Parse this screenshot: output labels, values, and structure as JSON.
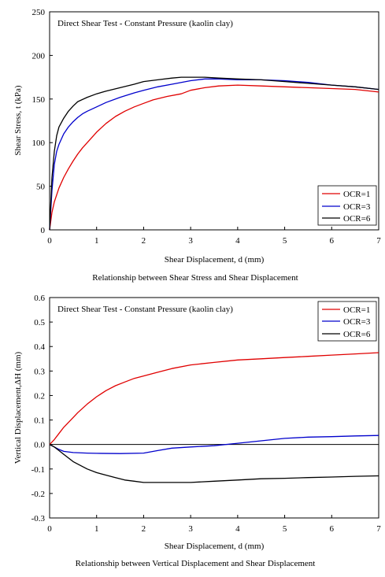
{
  "colors": {
    "ocr1": "#e00000",
    "ocr3": "#0000cc",
    "ocr6": "#000000"
  },
  "chart_data": [
    {
      "type": "line",
      "title": "Direct Shear Test - Constant Pressure  (kaolin clay)",
      "xlabel": "Shear Displacement, d (mm)",
      "ylabel": "Shear Stress, t (kPa)",
      "caption": "Relationship between Shear Stress and Shear Displacement",
      "xlim": [
        0,
        7
      ],
      "ylim": [
        0,
        250
      ],
      "xticks": [
        0,
        1,
        2,
        3,
        4,
        5,
        6,
        7
      ],
      "yticks": [
        0,
        50,
        100,
        150,
        200,
        250
      ],
      "ytick_decimals": 0,
      "zero_line": false,
      "legend_position": "bottom-right",
      "series": [
        {
          "name": "OCR=1",
          "color": "#e00000",
          "x": [
            0,
            0.05,
            0.1,
            0.2,
            0.3,
            0.4,
            0.5,
            0.6,
            0.7,
            0.8,
            1.0,
            1.2,
            1.4,
            1.6,
            1.8,
            2.0,
            2.2,
            2.5,
            2.8,
            3.0,
            3.3,
            3.6,
            4.0,
            4.5,
            5.0,
            5.5,
            6.0,
            6.5,
            7.0
          ],
          "y": [
            0,
            20,
            32,
            48,
            60,
            70,
            79,
            87,
            94,
            100,
            112,
            122,
            130,
            136,
            141,
            145,
            149,
            153,
            156,
            160,
            163,
            165,
            166,
            165,
            164,
            163,
            162,
            161,
            158
          ]
        },
        {
          "name": "OCR=3",
          "color": "#0000cc",
          "x": [
            0,
            0.05,
            0.1,
            0.15,
            0.2,
            0.3,
            0.4,
            0.5,
            0.6,
            0.7,
            0.8,
            1.0,
            1.2,
            1.5,
            1.8,
            2.0,
            2.3,
            2.6,
            3.0,
            3.3,
            3.6,
            4.0,
            4.5,
            5.0,
            5.5,
            6.0,
            6.5,
            7.0
          ],
          "y": [
            0,
            45,
            75,
            90,
            98,
            110,
            118,
            124,
            129,
            133,
            136,
            141,
            146,
            152,
            157,
            160,
            164,
            167,
            171,
            173,
            173,
            172,
            172,
            171,
            169,
            166,
            164,
            161
          ]
        },
        {
          "name": "OCR=6",
          "color": "#000000",
          "x": [
            0,
            0.05,
            0.1,
            0.15,
            0.2,
            0.3,
            0.4,
            0.5,
            0.6,
            0.8,
            1.0,
            1.2,
            1.5,
            1.8,
            2.0,
            2.3,
            2.6,
            2.8,
            3.0,
            3.3,
            3.6,
            4.0,
            4.5,
            5.0,
            5.5,
            6.0,
            6.5,
            7.0
          ],
          "y": [
            0,
            60,
            90,
            108,
            118,
            128,
            136,
            142,
            147,
            152,
            156,
            159,
            163,
            167,
            170,
            172,
            174,
            175,
            175,
            175,
            174,
            173,
            172,
            170,
            168,
            166,
            164,
            161
          ]
        }
      ]
    },
    {
      "type": "line",
      "title": "Direct Shear Test - Constant Pressure  (kaolin clay)",
      "xlabel": "Shear Displacement, d (mm)",
      "ylabel": "Vertical Displacement,ΔH (mm)",
      "caption": "Relationship between Vertical Displacement and Shear Displacement",
      "xlim": [
        0,
        7
      ],
      "ylim": [
        -0.3,
        0.6
      ],
      "xticks": [
        0,
        1,
        2,
        3,
        4,
        5,
        6,
        7
      ],
      "yticks": [
        -0.3,
        -0.2,
        -0.1,
        0.0,
        0.1,
        0.2,
        0.3,
        0.4,
        0.5,
        0.6
      ],
      "ytick_decimals": 1,
      "zero_line": true,
      "legend_position": "top-right",
      "series": [
        {
          "name": "OCR=1",
          "color": "#e00000",
          "x": [
            0,
            0.1,
            0.2,
            0.3,
            0.4,
            0.5,
            0.6,
            0.8,
            1.0,
            1.2,
            1.4,
            1.6,
            1.8,
            2.0,
            2.3,
            2.6,
            3.0,
            3.5,
            4.0,
            4.5,
            5.0,
            5.5,
            6.0,
            6.5,
            7.0
          ],
          "y": [
            0,
            0.02,
            0.045,
            0.07,
            0.09,
            0.11,
            0.13,
            0.165,
            0.195,
            0.22,
            0.24,
            0.255,
            0.27,
            0.28,
            0.295,
            0.31,
            0.325,
            0.335,
            0.345,
            0.35,
            0.355,
            0.36,
            0.365,
            0.37,
            0.375
          ]
        },
        {
          "name": "OCR=3",
          "color": "#0000cc",
          "x": [
            0,
            0.1,
            0.2,
            0.3,
            0.5,
            0.8,
            1.0,
            1.5,
            2.0,
            2.3,
            2.6,
            3.0,
            3.5,
            4.0,
            4.5,
            5.0,
            5.5,
            6.0,
            6.5,
            7.0
          ],
          "y": [
            0,
            -0.01,
            -0.02,
            -0.028,
            -0.033,
            -0.035,
            -0.036,
            -0.037,
            -0.035,
            -0.025,
            -0.015,
            -0.01,
            -0.005,
            0.005,
            0.015,
            0.025,
            0.03,
            0.032,
            0.035,
            0.037
          ]
        },
        {
          "name": "OCR=6",
          "color": "#000000",
          "x": [
            0,
            0.1,
            0.2,
            0.3,
            0.4,
            0.5,
            0.6,
            0.8,
            1.0,
            1.2,
            1.4,
            1.6,
            1.8,
            2.0,
            2.3,
            2.6,
            3.0,
            3.5,
            4.0,
            4.5,
            5.0,
            5.5,
            6.0,
            6.5,
            7.0
          ],
          "y": [
            0,
            -0.01,
            -0.025,
            -0.04,
            -0.055,
            -0.07,
            -0.08,
            -0.1,
            -0.115,
            -0.125,
            -0.135,
            -0.145,
            -0.15,
            -0.155,
            -0.155,
            -0.155,
            -0.155,
            -0.15,
            -0.145,
            -0.14,
            -0.138,
            -0.135,
            -0.133,
            -0.13,
            -0.128
          ]
        }
      ]
    }
  ]
}
